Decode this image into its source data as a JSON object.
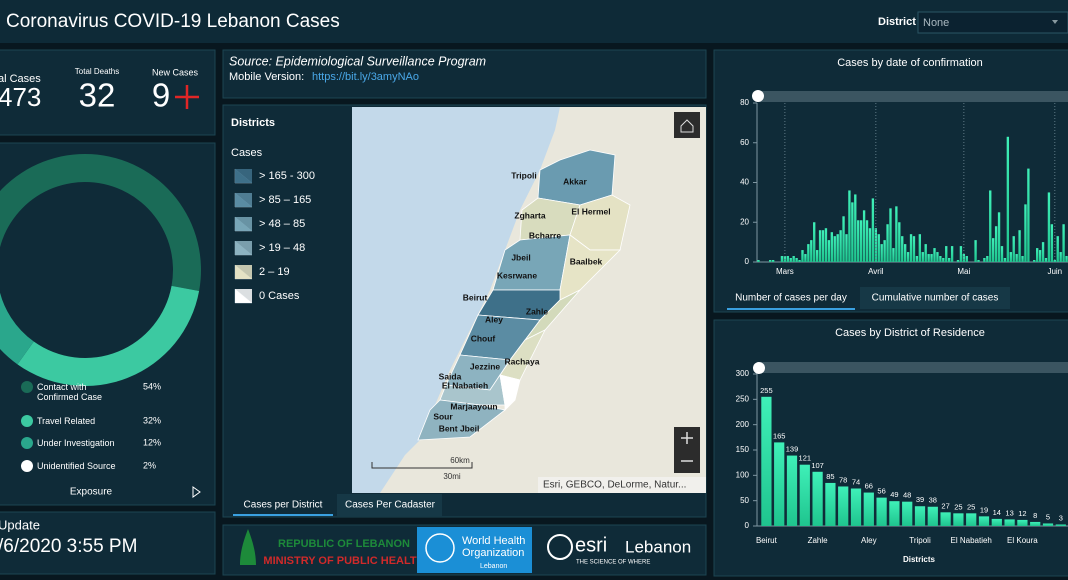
{
  "header": {
    "title": "Coronavirus COVID-19 Lebanon Cases",
    "district_label": "District",
    "district_value": "None"
  },
  "stats": {
    "total_cases_label": "al Cases",
    "total_cases": 473,
    "total_deaths_label": "Total Deaths",
    "total_deaths": 32,
    "new_cases_label": "New Cases",
    "new_cases": 9
  },
  "update": {
    "label": "Update",
    "time": "/6/2020 3:55 PM"
  },
  "source": {
    "title": "Source: Epidemiological Surveillance Program",
    "mobile_label": "Mobile Version:",
    "mobile_link": "https://bit.ly/3amyNAo"
  },
  "map": {
    "legend_title": "Districts",
    "legend_subtitle": "Cases",
    "legend": [
      "> 165 - 300",
      "> 85 – 165",
      "> 48 – 85",
      "> 19 – 48",
      "2 – 19",
      "0 Cases"
    ],
    "labels": [
      "Akkar",
      "Tripoli",
      "Zgharta",
      "El Hermel",
      "Bcharre",
      "Jbeil",
      "Baalbek",
      "Kesrwane",
      "Beirut",
      "Zahle",
      "Aley",
      "Chouf",
      "Rachaya",
      "Jezzine",
      "Saida",
      "El Nabatieh",
      "Marjaayoun",
      "Sour",
      "Bent Jbeil"
    ],
    "scale_km": "60km",
    "scale_mi": "30mi",
    "attribution": "Esri, GEBCO, DeLorme, Natur...",
    "tabs": [
      "Cases per District",
      "Cases Per Cadaster"
    ]
  },
  "logos": {
    "moph_line1": "REPUBLIC OF LEBANON",
    "moph_line2": "MINISTRY OF PUBLIC HEALTH",
    "who_line1": "World Health",
    "who_line2": "Organization",
    "who_line3": "Lebanon",
    "esri": "esri",
    "esri_country": "Lebanon",
    "esri_tagline": "THE SCIENCE OF WHERE"
  },
  "daily_tabs": [
    "Number of cases per day",
    "Cumulative number of cases"
  ],
  "chart_data": [
    {
      "type": "pie",
      "title": "Exposure",
      "categories": [
        "Contact with Confirmed Case",
        "Travel Related",
        "Under Investigation",
        "Unidentified Source"
      ],
      "values": [
        54,
        32,
        12,
        2
      ],
      "value_labels": [
        "54%",
        "32%",
        "12%",
        "2%"
      ],
      "colors": [
        "#1a6b57",
        "#3cc9a1",
        "#2aa78c",
        "#ffffff"
      ]
    },
    {
      "type": "bar",
      "title": "Cases by  date of confirmation",
      "categories": [
        null,
        null,
        null,
        null,
        null,
        null,
        null,
        null,
        null,
        "Mars",
        null,
        null,
        null,
        null,
        null,
        null,
        null,
        null,
        null,
        null,
        null,
        null,
        null,
        null,
        null,
        null,
        null,
        null,
        null,
        null,
        null,
        null,
        null,
        null,
        null,
        null,
        null,
        null,
        null,
        null,
        "Avril",
        null,
        null,
        null,
        null,
        null,
        null,
        null,
        null,
        null,
        null,
        null,
        null,
        null,
        null,
        null,
        null,
        null,
        null,
        null,
        null,
        null,
        null,
        null,
        null,
        null,
        null,
        null,
        null,
        null,
        "Mai",
        null,
        null,
        null,
        null,
        null,
        null,
        null,
        null,
        null,
        null,
        null,
        null,
        null,
        null,
        null,
        null,
        null,
        null,
        null,
        null,
        null,
        null,
        null,
        null,
        null,
        null,
        null,
        null,
        null,
        null,
        "Juin",
        null,
        null,
        null,
        null
      ],
      "values": [
        1,
        0,
        0,
        0,
        1,
        1,
        0,
        0,
        3,
        3,
        3,
        2,
        3,
        2,
        1,
        6,
        4,
        9,
        11,
        20,
        6,
        16,
        16,
        17,
        11,
        15,
        13,
        14,
        16,
        23,
        14,
        36,
        30,
        34,
        21,
        21,
        26,
        21,
        17,
        32,
        17,
        14,
        9,
        11,
        19,
        27,
        7,
        28,
        20,
        13,
        9,
        5,
        14,
        13,
        3,
        14,
        5,
        9,
        4,
        4,
        7,
        5,
        3,
        2,
        8,
        2,
        8,
        0,
        1,
        8,
        4,
        3,
        0,
        0,
        11,
        1,
        0,
        2,
        3,
        36,
        12,
        18,
        25,
        8,
        2,
        63,
        5,
        13,
        4,
        16,
        3,
        29,
        47,
        0,
        1,
        7,
        6,
        10,
        2,
        35,
        19,
        1,
        13,
        5,
        19,
        3
      ],
      "color": "#2de0a5",
      "ylim": [
        0,
        80
      ],
      "yticks": [
        0,
        20,
        40,
        60,
        80
      ]
    },
    {
      "type": "bar",
      "title": "Cases by District of Residence",
      "xlabel": "Districts",
      "categories": [
        "Beirut",
        null,
        null,
        null,
        "Zahle",
        null,
        null,
        null,
        "Aley",
        null,
        null,
        null,
        "Tripoli",
        null,
        null,
        null,
        "El Nabatieh",
        null,
        null,
        null,
        "El Koura",
        null,
        null,
        null
      ],
      "values": [
        255,
        165,
        139,
        121,
        107,
        85,
        78,
        74,
        66,
        56,
        49,
        48,
        39,
        38,
        27,
        25,
        25,
        19,
        14,
        13,
        12,
        8,
        5,
        3
      ],
      "color": "#2de0a5",
      "ylim": [
        0,
        300
      ],
      "yticks": [
        0,
        50,
        100,
        150,
        200,
        250,
        300
      ]
    }
  ]
}
